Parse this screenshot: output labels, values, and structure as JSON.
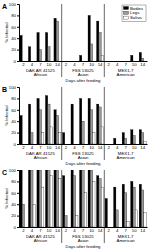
{
  "chart_data": [
    {
      "type": "bar",
      "title": "A",
      "ylabel": "% Infected",
      "xlabel": "Days after feeding",
      "categories": [
        "2",
        "4",
        "7",
        "10",
        "14",
        "2",
        "4",
        "7",
        "10",
        "14",
        "2",
        "4",
        "7",
        "10",
        "14"
      ],
      "groups": [
        {
          "label": "DAK AR 41525",
          "region": "African"
        },
        {
          "label": "FSS 13025",
          "region": "Asian"
        },
        {
          "label": "MEX1-7",
          "region": "American"
        }
      ],
      "series": [
        {
          "name": "Bodies",
          "color": "#000000",
          "values": [
            45,
            25,
            50,
            50,
            75,
            0,
            0,
            10,
            80,
            70,
            0,
            0,
            0,
            10,
            15
          ]
        },
        {
          "name": "Legs",
          "color": "#9a9a9a",
          "values": [
            0,
            0,
            20,
            25,
            70,
            0,
            0,
            0,
            30,
            50,
            0,
            0,
            0,
            0,
            5
          ]
        },
        {
          "name": "Saliva",
          "color": "#ffffff",
          "values": [
            0,
            0,
            0,
            0,
            0,
            0,
            0,
            0,
            0,
            10,
            0,
            0,
            0,
            0,
            0
          ]
        }
      ],
      "ylim": [
        0,
        100
      ],
      "yticks": [
        0,
        20,
        40,
        60,
        80,
        100
      ],
      "legend": "upper right"
    },
    {
      "type": "bar",
      "title": "B",
      "ylabel": "% Infected",
      "xlabel": "Days after feeding",
      "categories": [
        "2",
        "4",
        "7",
        "10",
        "14",
        "2",
        "4",
        "7",
        "10",
        "14",
        "2",
        "4",
        "7",
        "10",
        "14"
      ],
      "groups": [
        {
          "label": "DAK AR 41525",
          "region": "African"
        },
        {
          "label": "FSS 13025",
          "region": "Asian"
        },
        {
          "label": "MEX1-7",
          "region": "American"
        }
      ],
      "series": [
        {
          "name": "Bodies",
          "color": "#000000",
          "values": [
            50,
            70,
            80,
            85,
            60,
            20,
            70,
            80,
            80,
            70,
            0,
            10,
            20,
            25,
            25
          ]
        },
        {
          "name": "Legs",
          "color": "#9a9a9a",
          "values": [
            0,
            20,
            60,
            70,
            50,
            0,
            0,
            40,
            60,
            65,
            0,
            0,
            10,
            15,
            20
          ]
        },
        {
          "name": "Saliva",
          "color": "#ffffff",
          "values": [
            0,
            0,
            20,
            30,
            20,
            0,
            0,
            0,
            20,
            30,
            0,
            0,
            0,
            0,
            5
          ]
        }
      ],
      "ylim": [
        0,
        100
      ],
      "yticks": [
        0,
        20,
        40,
        60,
        80,
        100
      ]
    },
    {
      "type": "bar",
      "title": "C",
      "ylabel": "% Infected",
      "xlabel": "Days after feeding",
      "categories": [
        "2",
        "4",
        "7",
        "10",
        "14",
        "2",
        "4",
        "7",
        "10",
        "14",
        "2",
        "4",
        "7",
        "10",
        "14"
      ],
      "groups": [
        {
          "label": "DAK AR 41525",
          "region": "African"
        },
        {
          "label": "FSS 13025",
          "region": "Asian"
        },
        {
          "label": "MEX1-7",
          "region": "American"
        }
      ],
      "series": [
        {
          "name": "Bodies",
          "color": "#000000",
          "values": [
            100,
            100,
            100,
            100,
            100,
            90,
            100,
            100,
            100,
            90,
            50,
            70,
            75,
            80,
            75
          ]
        },
        {
          "name": "Legs",
          "color": "#9a9a9a",
          "values": [
            40,
            100,
            100,
            100,
            100,
            20,
            90,
            100,
            100,
            85,
            0,
            30,
            60,
            70,
            65
          ]
        },
        {
          "name": "Saliva",
          "color": "#ffffff",
          "values": [
            0,
            40,
            70,
            90,
            85,
            0,
            20,
            60,
            80,
            70,
            0,
            0,
            10,
            30,
            25
          ]
        }
      ],
      "ylim": [
        0,
        100
      ],
      "yticks": [
        0,
        20,
        40,
        60,
        80,
        100
      ]
    }
  ]
}
